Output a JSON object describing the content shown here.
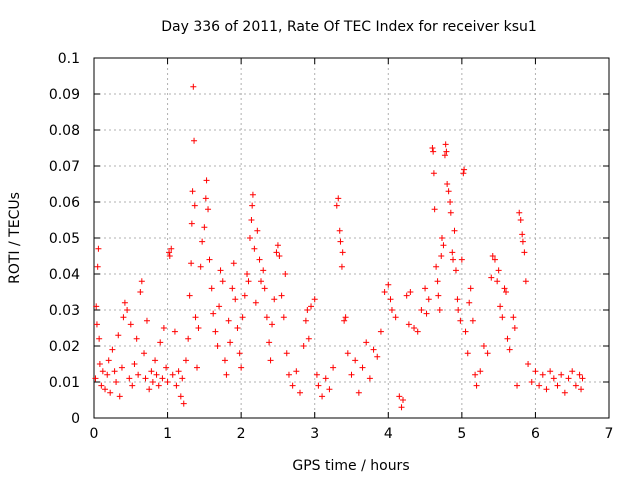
{
  "chart_data": {
    "type": "scatter",
    "title": "Day 336 of 2011, Rate Of TEC Index for receiver ksu1",
    "xlabel": "GPS time / hours",
    "ylabel": "ROTI / TECUs",
    "xlim": [
      0,
      7
    ],
    "ylim": [
      0,
      0.1
    ],
    "x_ticks": [
      "0",
      "1",
      "2",
      "3",
      "4",
      "5",
      "6",
      "7"
    ],
    "y_ticks": [
      "0",
      "0.01",
      "0.02",
      "0.03",
      "0.04",
      "0.05",
      "0.06",
      "0.07",
      "0.08",
      "0.09",
      "0.1"
    ],
    "grid": true,
    "marker": "+",
    "series": [
      {
        "color": "#ff0000",
        "points": [
          [
            0.02,
            0.011
          ],
          [
            0.03,
            0.031
          ],
          [
            0.04,
            0.026
          ],
          [
            0.05,
            0.042
          ],
          [
            0.06,
            0.047
          ],
          [
            0.07,
            0.022
          ],
          [
            0.08,
            0.015
          ],
          [
            0.1,
            0.009
          ],
          [
            0.12,
            0.013
          ],
          [
            0.15,
            0.008
          ],
          [
            0.18,
            0.012
          ],
          [
            0.2,
            0.016
          ],
          [
            0.22,
            0.007
          ],
          [
            0.25,
            0.019
          ],
          [
            0.28,
            0.013
          ],
          [
            0.3,
            0.01
          ],
          [
            0.33,
            0.023
          ],
          [
            0.35,
            0.006
          ],
          [
            0.38,
            0.014
          ],
          [
            0.4,
            0.028
          ],
          [
            0.42,
            0.032
          ],
          [
            0.45,
            0.03
          ],
          [
            0.48,
            0.011
          ],
          [
            0.5,
            0.026
          ],
          [
            0.52,
            0.009
          ],
          [
            0.55,
            0.015
          ],
          [
            0.58,
            0.022
          ],
          [
            0.6,
            0.012
          ],
          [
            0.63,
            0.035
          ],
          [
            0.65,
            0.038
          ],
          [
            0.68,
            0.018
          ],
          [
            0.7,
            0.011
          ],
          [
            0.72,
            0.027
          ],
          [
            0.75,
            0.008
          ],
          [
            0.78,
            0.013
          ],
          [
            0.8,
            0.01
          ],
          [
            0.83,
            0.016
          ],
          [
            0.85,
            0.012
          ],
          [
            0.88,
            0.009
          ],
          [
            0.9,
            0.021
          ],
          [
            0.93,
            0.011
          ],
          [
            0.95,
            0.025
          ],
          [
            0.98,
            0.014
          ],
          [
            1.0,
            0.01
          ],
          [
            1.02,
            0.046
          ],
          [
            1.03,
            0.045
          ],
          [
            1.05,
            0.047
          ],
          [
            1.07,
            0.012
          ],
          [
            1.1,
            0.024
          ],
          [
            1.12,
            0.009
          ],
          [
            1.15,
            0.013
          ],
          [
            1.18,
            0.006
          ],
          [
            1.2,
            0.011
          ],
          [
            1.22,
            0.004
          ],
          [
            1.25,
            0.016
          ],
          [
            1.28,
            0.022
          ],
          [
            1.3,
            0.034
          ],
          [
            1.32,
            0.043
          ],
          [
            1.33,
            0.054
          ],
          [
            1.34,
            0.063
          ],
          [
            1.35,
            0.092
          ],
          [
            1.36,
            0.077
          ],
          [
            1.37,
            0.059
          ],
          [
            1.38,
            0.028
          ],
          [
            1.4,
            0.014
          ],
          [
            1.42,
            0.025
          ],
          [
            1.45,
            0.042
          ],
          [
            1.47,
            0.049
          ],
          [
            1.5,
            0.053
          ],
          [
            1.52,
            0.061
          ],
          [
            1.53,
            0.066
          ],
          [
            1.55,
            0.058
          ],
          [
            1.57,
            0.044
          ],
          [
            1.6,
            0.036
          ],
          [
            1.62,
            0.029
          ],
          [
            1.65,
            0.024
          ],
          [
            1.68,
            0.02
          ],
          [
            1.7,
            0.031
          ],
          [
            1.72,
            0.041
          ],
          [
            1.75,
            0.038
          ],
          [
            1.78,
            0.016
          ],
          [
            1.8,
            0.012
          ],
          [
            1.83,
            0.027
          ],
          [
            1.85,
            0.021
          ],
          [
            1.88,
            0.036
          ],
          [
            1.9,
            0.043
          ],
          [
            1.92,
            0.033
          ],
          [
            1.95,
            0.025
          ],
          [
            1.98,
            0.018
          ],
          [
            2.0,
            0.014
          ],
          [
            2.02,
            0.028
          ],
          [
            2.05,
            0.034
          ],
          [
            2.08,
            0.04
          ],
          [
            2.1,
            0.038
          ],
          [
            2.12,
            0.05
          ],
          [
            2.14,
            0.055
          ],
          [
            2.15,
            0.059
          ],
          [
            2.16,
            0.062
          ],
          [
            2.18,
            0.047
          ],
          [
            2.2,
            0.032
          ],
          [
            2.22,
            0.052
          ],
          [
            2.25,
            0.044
          ],
          [
            2.27,
            0.038
          ],
          [
            2.3,
            0.041
          ],
          [
            2.32,
            0.036
          ],
          [
            2.35,
            0.028
          ],
          [
            2.38,
            0.021
          ],
          [
            2.4,
            0.016
          ],
          [
            2.42,
            0.026
          ],
          [
            2.45,
            0.033
          ],
          [
            2.48,
            0.046
          ],
          [
            2.5,
            0.048
          ],
          [
            2.52,
            0.045
          ],
          [
            2.55,
            0.034
          ],
          [
            2.58,
            0.028
          ],
          [
            2.6,
            0.04
          ],
          [
            2.62,
            0.018
          ],
          [
            2.65,
            0.012
          ],
          [
            2.7,
            0.009
          ],
          [
            2.75,
            0.013
          ],
          [
            2.8,
            0.007
          ],
          [
            2.85,
            0.02
          ],
          [
            2.88,
            0.027
          ],
          [
            2.9,
            0.03
          ],
          [
            2.92,
            0.022
          ],
          [
            2.95,
            0.031
          ],
          [
            3.0,
            0.033
          ],
          [
            3.03,
            0.012
          ],
          [
            3.05,
            0.009
          ],
          [
            3.1,
            0.006
          ],
          [
            3.15,
            0.011
          ],
          [
            3.2,
            0.008
          ],
          [
            3.25,
            0.014
          ],
          [
            3.3,
            0.059
          ],
          [
            3.32,
            0.061
          ],
          [
            3.34,
            0.052
          ],
          [
            3.35,
            0.049
          ],
          [
            3.37,
            0.042
          ],
          [
            3.38,
            0.046
          ],
          [
            3.4,
            0.027
          ],
          [
            3.42,
            0.028
          ],
          [
            3.45,
            0.018
          ],
          [
            3.5,
            0.012
          ],
          [
            3.55,
            0.016
          ],
          [
            3.6,
            0.007
          ],
          [
            3.65,
            0.014
          ],
          [
            3.7,
            0.021
          ],
          [
            3.75,
            0.011
          ],
          [
            3.8,
            0.019
          ],
          [
            3.85,
            0.017
          ],
          [
            3.9,
            0.024
          ],
          [
            3.95,
            0.035
          ],
          [
            4.0,
            0.037
          ],
          [
            4.03,
            0.033
          ],
          [
            4.05,
            0.03
          ],
          [
            4.1,
            0.028
          ],
          [
            4.15,
            0.006
          ],
          [
            4.18,
            0.003
          ],
          [
            4.2,
            0.005
          ],
          [
            4.25,
            0.034
          ],
          [
            4.28,
            0.026
          ],
          [
            4.3,
            0.035
          ],
          [
            4.35,
            0.025
          ],
          [
            4.4,
            0.024
          ],
          [
            4.45,
            0.03
          ],
          [
            4.5,
            0.036
          ],
          [
            4.52,
            0.029
          ],
          [
            4.55,
            0.033
          ],
          [
            4.6,
            0.075
          ],
          [
            4.61,
            0.074
          ],
          [
            4.62,
            0.068
          ],
          [
            4.63,
            0.058
          ],
          [
            4.65,
            0.042
          ],
          [
            4.67,
            0.038
          ],
          [
            4.68,
            0.034
          ],
          [
            4.7,
            0.03
          ],
          [
            4.72,
            0.045
          ],
          [
            4.73,
            0.05
          ],
          [
            4.75,
            0.048
          ],
          [
            4.77,
            0.073
          ],
          [
            4.78,
            0.076
          ],
          [
            4.79,
            0.074
          ],
          [
            4.8,
            0.065
          ],
          [
            4.82,
            0.063
          ],
          [
            4.84,
            0.06
          ],
          [
            4.85,
            0.057
          ],
          [
            4.87,
            0.046
          ],
          [
            4.88,
            0.044
          ],
          [
            4.9,
            0.052
          ],
          [
            4.92,
            0.041
          ],
          [
            4.94,
            0.033
          ],
          [
            4.95,
            0.03
          ],
          [
            4.98,
            0.027
          ],
          [
            5.0,
            0.044
          ],
          [
            5.02,
            0.068
          ],
          [
            5.03,
            0.069
          ],
          [
            5.05,
            0.024
          ],
          [
            5.08,
            0.018
          ],
          [
            5.1,
            0.032
          ],
          [
            5.12,
            0.036
          ],
          [
            5.15,
            0.027
          ],
          [
            5.18,
            0.012
          ],
          [
            5.2,
            0.009
          ],
          [
            5.25,
            0.013
          ],
          [
            5.3,
            0.02
          ],
          [
            5.35,
            0.018
          ],
          [
            5.4,
            0.039
          ],
          [
            5.42,
            0.045
          ],
          [
            5.45,
            0.044
          ],
          [
            5.48,
            0.038
          ],
          [
            5.5,
            0.041
          ],
          [
            5.52,
            0.031
          ],
          [
            5.55,
            0.028
          ],
          [
            5.58,
            0.036
          ],
          [
            5.6,
            0.035
          ],
          [
            5.62,
            0.022
          ],
          [
            5.65,
            0.019
          ],
          [
            5.7,
            0.028
          ],
          [
            5.72,
            0.025
          ],
          [
            5.75,
            0.009
          ],
          [
            5.78,
            0.057
          ],
          [
            5.8,
            0.055
          ],
          [
            5.82,
            0.051
          ],
          [
            5.83,
            0.049
          ],
          [
            5.85,
            0.046
          ],
          [
            5.87,
            0.038
          ],
          [
            5.9,
            0.015
          ],
          [
            5.95,
            0.01
          ],
          [
            6.0,
            0.013
          ],
          [
            6.05,
            0.009
          ],
          [
            6.1,
            0.012
          ],
          [
            6.15,
            0.008
          ],
          [
            6.2,
            0.013
          ],
          [
            6.25,
            0.011
          ],
          [
            6.3,
            0.009
          ],
          [
            6.35,
            0.012
          ],
          [
            6.4,
            0.007
          ],
          [
            6.45,
            0.011
          ],
          [
            6.5,
            0.013
          ],
          [
            6.55,
            0.009
          ],
          [
            6.6,
            0.012
          ],
          [
            6.62,
            0.008
          ],
          [
            6.64,
            0.011
          ]
        ]
      }
    ]
  }
}
